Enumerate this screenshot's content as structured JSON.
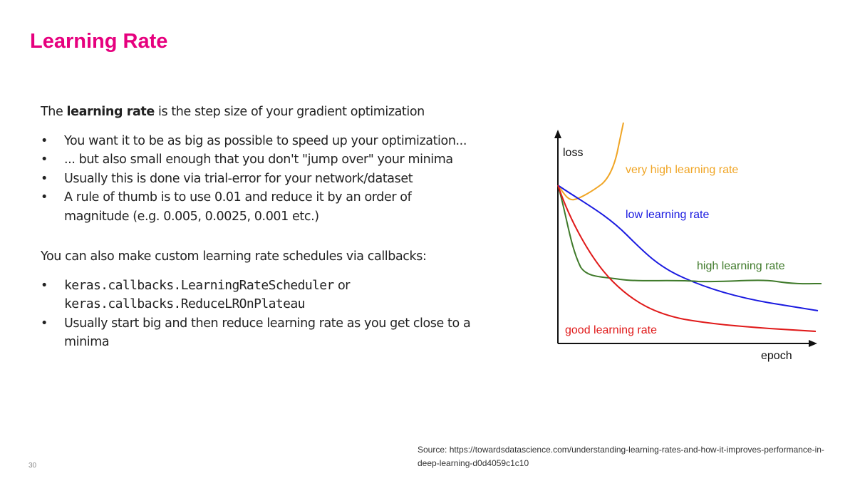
{
  "title": "Learning Rate",
  "intro": {
    "prefix": "The ",
    "bold": "learning rate",
    "suffix": " is the step size of your gradient optimization"
  },
  "bullets1": [
    "You want it to be as big as possible to speed up your optimization...",
    "... but also small enough that you don't \"jump over\" your minima",
    "Usually this is done via trial-error for your network/dataset",
    "A rule of thumb is to use 0.01 and reduce it by an order of magnitude (e.g. 0.005, 0.0025, 0.001 etc.)"
  ],
  "intro2": "You can also make custom learning rate schedules via callbacks:",
  "bullets2": {
    "code1": "keras.callbacks.LearningRateScheduler",
    "or": " or",
    "code2": "keras.callbacks.ReduceLROnPlateau",
    "item2": "Usually start big and then reduce learning rate as you get close to a minima"
  },
  "bullet_char": "•",
  "figure": {
    "y_label": "loss",
    "x_label": "epoch",
    "series": [
      {
        "name": "very high learning rate",
        "color": "#f0a525"
      },
      {
        "name": "low learning rate",
        "color": "#1a1ae0"
      },
      {
        "name": "high learning rate",
        "color": "#3f7a2a"
      },
      {
        "name": "good learning rate",
        "color": "#e01a1a"
      }
    ]
  },
  "source": "Source: https://towardsdatascience.com/understanding-learning-rates-and-how-it-improves-performance-in-deep-learning-d0d4059c1c10",
  "page_number": "30",
  "colors": {
    "title": "#e6007e"
  }
}
